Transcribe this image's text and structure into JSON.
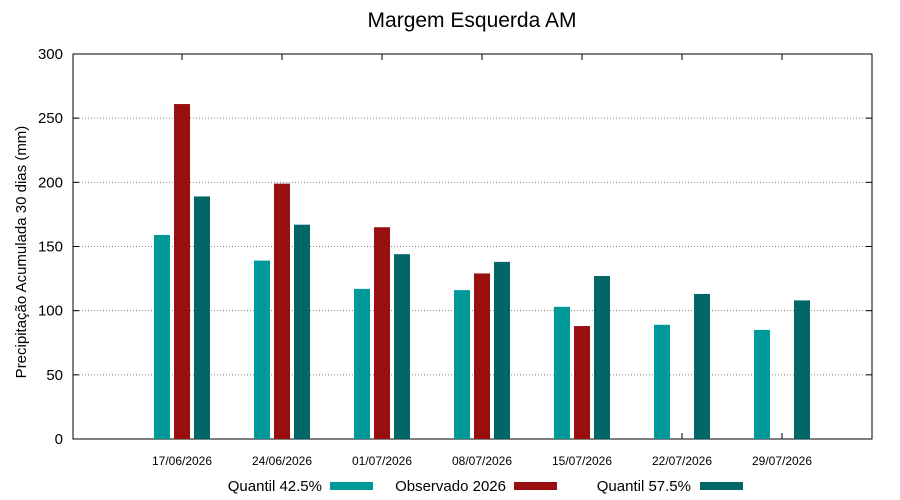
{
  "chart_data": {
    "type": "bar",
    "title": "Margem Esquerda AM",
    "xlabel": "",
    "ylabel": "Precipitação Acumulada 30 dias (mm)",
    "ylim": [
      0,
      300
    ],
    "yticks": [
      0,
      50,
      100,
      150,
      200,
      250,
      300
    ],
    "grid": "horizontal dotted",
    "legend_position": "bottom",
    "categories": [
      "17/06/2026",
      "24/06/2026",
      "01/07/2026",
      "08/07/2026",
      "15/07/2026",
      "22/07/2026",
      "29/07/2026"
    ],
    "series": [
      {
        "name": "Quantil 42.5%",
        "color": "#009999",
        "values": [
          159,
          139,
          117,
          116,
          103,
          89,
          85
        ]
      },
      {
        "name": "Observado 2026",
        "color": "#990f0f",
        "values": [
          261,
          199,
          165,
          129,
          88,
          null,
          null
        ]
      },
      {
        "name": "Quantil 57.5%",
        "color": "#006666",
        "values": [
          189,
          167,
          144,
          138,
          127,
          113,
          108
        ]
      }
    ]
  }
}
